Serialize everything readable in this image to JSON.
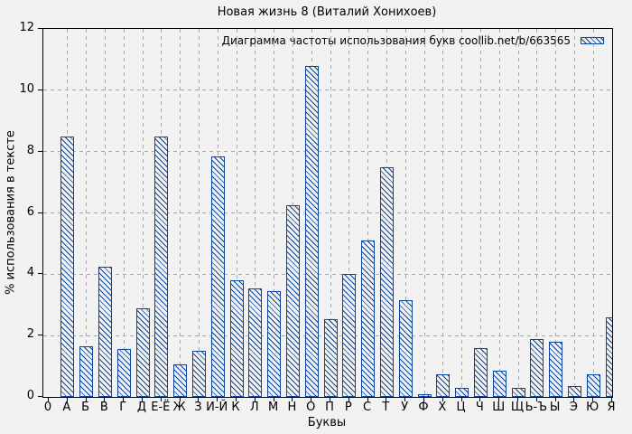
{
  "title": "Новая жизнь 8 (Виталий Хонихоев)",
  "legend": {
    "label": "Диаграмма частоты использования букв coollib.net/b/663565",
    "position": "top-right",
    "swatch": "hatched-box-icon"
  },
  "axes": {
    "y_label": "% использования в тексте",
    "x_label": "Буквы",
    "y_ticks": [
      0,
      2,
      4,
      6,
      8,
      10,
      12
    ],
    "x_origin_label": "0"
  },
  "colors": {
    "bar": "#0a46a0",
    "grid": "#ababab",
    "background": "#f2f2f2",
    "axis": "#000000"
  },
  "chart_data": {
    "type": "bar",
    "title": "Новая жизнь 8 (Виталий Хонихоев)",
    "legend_label": "Диаграмма частоты использования букв coollib.net/b/663565",
    "xlabel": "Буквы",
    "ylabel": "% использования в тексте",
    "ylim": [
      0,
      12
    ],
    "grid": true,
    "hatch": "diagonal",
    "bar_color": "#0a46a0",
    "categories": [
      "А",
      "Б",
      "В",
      "Г",
      "Д",
      "Е-Ё",
      "Ж",
      "З",
      "И-Й",
      "К",
      "Л",
      "М",
      "Н",
      "О",
      "П",
      "Р",
      "С",
      "Т",
      "У",
      "Ф",
      "Х",
      "Ц",
      "Ч",
      "Ш",
      "Щ",
      "Ь-Ъ",
      "Ы",
      "Э",
      "Ю",
      "Я"
    ],
    "values": [
      8.5,
      1.65,
      4.25,
      1.55,
      2.9,
      8.5,
      1.05,
      1.5,
      7.85,
      3.8,
      3.55,
      3.45,
      6.25,
      10.8,
      2.55,
      4.0,
      5.1,
      7.5,
      3.15,
      0.1,
      0.75,
      0.3,
      1.6,
      0.85,
      0.3,
      1.9,
      1.8,
      0.35,
      0.75,
      2.6
    ]
  }
}
